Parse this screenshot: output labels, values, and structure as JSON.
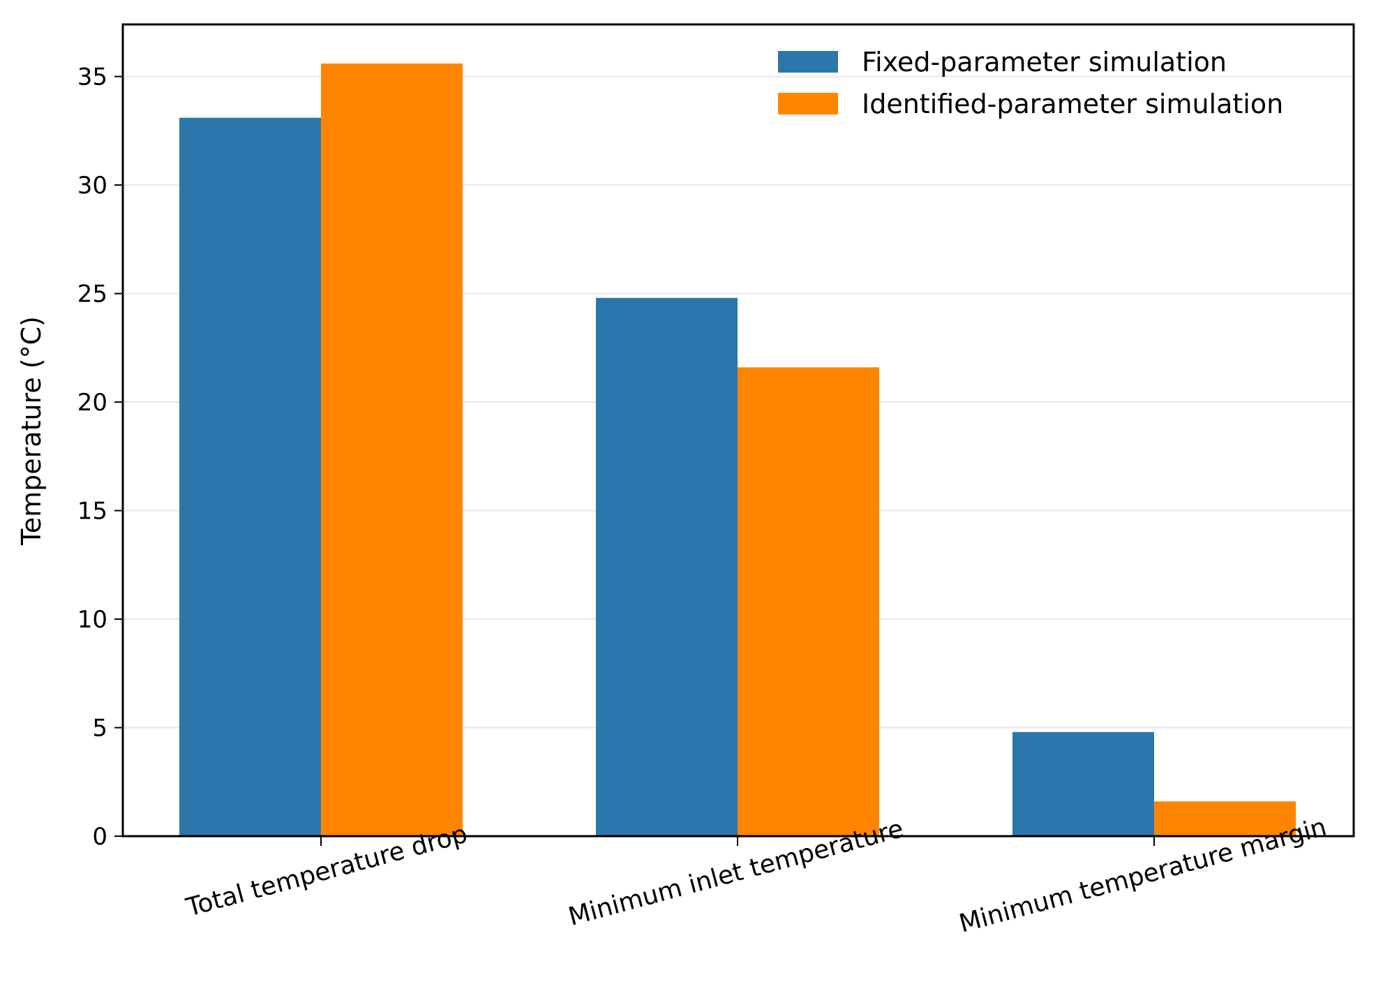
{
  "chart_data": {
    "type": "bar",
    "categories": [
      "Total temperature drop",
      "Minimum inlet temperature",
      "Minimum temperature margin"
    ],
    "series": [
      {
        "name": "Fixed-parameter simulation",
        "color": "#2b77ab",
        "values": [
          33.1,
          24.8,
          4.8
        ]
      },
      {
        "name": "Identified-parameter simulation",
        "color": "#ff8400",
        "values": [
          35.6,
          21.6,
          1.6
        ]
      }
    ],
    "xlabel": "",
    "ylabel": "Temperature (°C)",
    "ylim": [
      0,
      37.4
    ],
    "yticks": [
      "0",
      "5",
      "10",
      "15",
      "20",
      "25",
      "30",
      "35"
    ],
    "grid": "horizontal",
    "legend_position": "top-right"
  }
}
